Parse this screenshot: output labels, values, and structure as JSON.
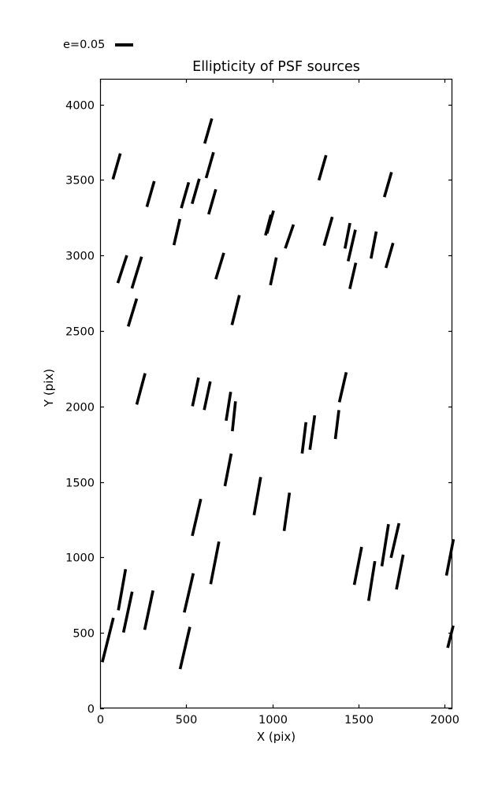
{
  "figure": {
    "background": "#ffffff",
    "ink_color": "#000000"
  },
  "chart_data": {
    "type": "scatter",
    "subtype": "ellipticity-whisker-plot",
    "title": "Ellipticity of PSF sources",
    "xlabel": "X (pix)",
    "ylabel": "Y (pix)",
    "xlim": [
      0,
      2045
    ],
    "ylim": [
      0,
      4170
    ],
    "xticks": [
      0,
      500,
      1000,
      1500,
      2000
    ],
    "yticks": [
      0,
      500,
      1000,
      1500,
      2000,
      2500,
      3000,
      3500,
      4000
    ],
    "grid": false,
    "legend": {
      "label": "e=0.05",
      "position": "upper-left-outside-axes"
    },
    "marker_color": "#000000",
    "segment_format": "[x_data, y_data, tilt_deg_clockwise_from_vertical, length_screen_px]",
    "segments": [
      [
        628,
        3824,
        16,
        33
      ],
      [
        96,
        3590,
        16,
        34
      ],
      [
        637,
        3598,
        16,
        34
      ],
      [
        293,
        3407,
        16,
        34
      ],
      [
        493,
        3399,
        16,
        34
      ],
      [
        555,
        3425,
        16,
        33
      ],
      [
        651,
        3355,
        16,
        33
      ],
      [
        446,
        3155,
        13,
        34
      ],
      [
        988,
        3221,
        16,
        30
      ],
      [
        976,
        3201,
        15,
        27
      ],
      [
        1291,
        3581,
        16,
        33
      ],
      [
        1671,
        3469,
        16,
        33
      ],
      [
        129,
        2909,
        18,
        37
      ],
      [
        213,
        2887,
        17,
        42
      ],
      [
        188,
        2622,
        17,
        37
      ],
      [
        695,
        2930,
        17,
        35
      ],
      [
        787,
        2638,
        14,
        39
      ],
      [
        1006,
        2895,
        12,
        36
      ],
      [
        1099,
        3126,
        19,
        32
      ],
      [
        1324,
        3160,
        16,
        38
      ],
      [
        1436,
        3130,
        11,
        33
      ],
      [
        1461,
        3066,
        13,
        41
      ],
      [
        1467,
        2865,
        13,
        34
      ],
      [
        1588,
        3069,
        11,
        35
      ],
      [
        1680,
        3000,
        16,
        33
      ],
      [
        237,
        2116,
        15,
        41
      ],
      [
        554,
        2096,
        12,
        37
      ],
      [
        622,
        2071,
        12,
        37
      ],
      [
        745,
        2001,
        9,
        37
      ],
      [
        777,
        1935,
        6,
        38
      ],
      [
        743,
        1580,
        11,
        42
      ],
      [
        913,
        1406,
        10,
        49
      ],
      [
        560,
        1265,
        13,
        48
      ],
      [
        1409,
        2127,
        13,
        39
      ],
      [
        1376,
        1880,
        7,
        37
      ],
      [
        1184,
        1792,
        7,
        40
      ],
      [
        1232,
        1827,
        8,
        44
      ],
      [
        1084,
        1302,
        8,
        49
      ],
      [
        127,
        786,
        10,
        53
      ],
      [
        161,
        638,
        12,
        53
      ],
      [
        45,
        453,
        14,
        58
      ],
      [
        283,
        651,
        12,
        51
      ],
      [
        515,
        765,
        13,
        51
      ],
      [
        493,
        400,
        13,
        55
      ],
      [
        666,
        964,
        11,
        55
      ],
      [
        1497,
        944,
        11,
        49
      ],
      [
        1577,
        844,
        9,
        51
      ],
      [
        1655,
        1081,
        9,
        54
      ],
      [
        1712,
        1112,
        13,
        45
      ],
      [
        1740,
        903,
        11,
        45
      ],
      [
        2031,
        1000,
        11,
        47
      ],
      [
        2034,
        475,
        14,
        29
      ]
    ]
  }
}
